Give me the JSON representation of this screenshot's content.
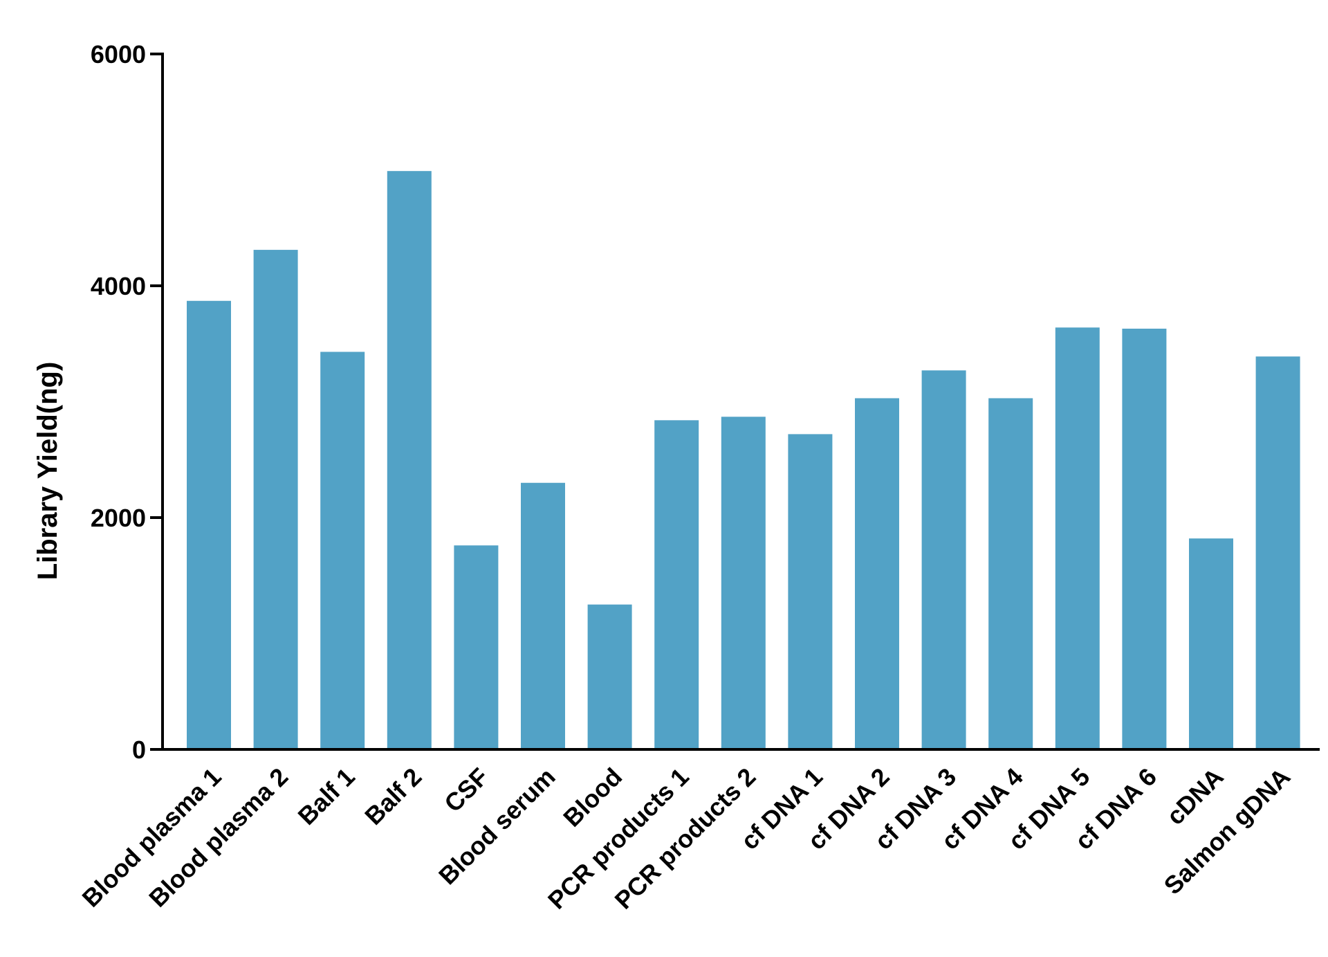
{
  "chart_data": {
    "type": "bar",
    "title": "",
    "xlabel": "",
    "ylabel": "Library Yield(ng)",
    "ylim": [
      0,
      6000
    ],
    "yticks": [
      0,
      2000,
      4000,
      6000
    ],
    "grid": false,
    "bar_color": "#52a2c6",
    "categories": [
      "Blood plasma 1",
      "Blood plasma 2",
      "Balf 1",
      "Balf 2",
      "CSF",
      "Blood serum",
      "Blood",
      "PCR products 1",
      "PCR products 2",
      "cf DNA 1",
      "cf DNA 2",
      "cf DNA 3",
      "cf DNA 4",
      "cf DNA 5",
      "cf DNA 6",
      "cDNA",
      "Salmon gDNA"
    ],
    "values": [
      3870,
      4310,
      3430,
      4990,
      1760,
      2300,
      1250,
      2840,
      2870,
      2720,
      3030,
      3270,
      3030,
      3640,
      3630,
      1820,
      3390
    ]
  }
}
